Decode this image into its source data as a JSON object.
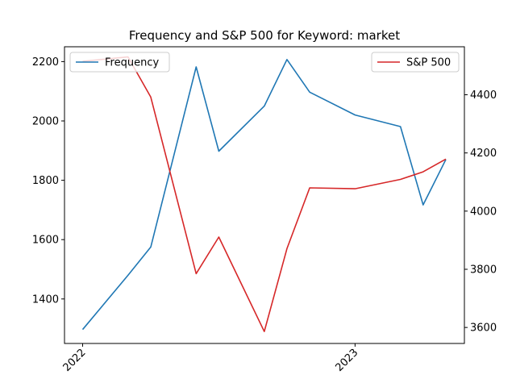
{
  "chart_data": {
    "type": "line",
    "title": "Frequency and S&P 500 for Keyword: market",
    "xlabel": "",
    "ylabel_left": "",
    "ylabel_right": "",
    "x": [
      "2022-01",
      "2022-02",
      "2022-03",
      "2022-04",
      "2022-05",
      "2022-06",
      "2022-07",
      "2022-08",
      "2022-09",
      "2022-10",
      "2022-11",
      "2022-12",
      "2023-01",
      "2023-02",
      "2023-03",
      "2023-04",
      "2023-05",
      "2023-06"
    ],
    "x_ticks": [
      "2022",
      "2023"
    ],
    "series": [
      {
        "name": "Frequency",
        "axis": "left",
        "color": "#1f77b4",
        "x": [
          "2022-01",
          "2022-03",
          "2022-04",
          "2022-06",
          "2022-07",
          "2022-09",
          "2022-10",
          "2022-11",
          "2023-01",
          "2023-03",
          "2023-04",
          "2023-05"
        ],
        "values": [
          1297,
          1480,
          1575,
          2182,
          1898,
          2050,
          2207,
          2097,
          2020,
          1981,
          1717,
          1870
        ]
      },
      {
        "name": "S&P 500",
        "axis": "right",
        "color": "#d62728",
        "x": [
          "2022-01",
          "2022-03",
          "2022-04",
          "2022-06",
          "2022-07",
          "2022-09",
          "2022-10",
          "2022-11",
          "2023-01",
          "2023-03",
          "2023-04",
          "2023-05"
        ],
        "values": [
          4515,
          4530,
          4392,
          3785,
          3911,
          3586,
          3871,
          4080,
          4077,
          4109,
          4135,
          4179
        ]
      }
    ],
    "y_left": {
      "ylim": [
        1250,
        2250
      ],
      "ticks": [
        1400,
        1600,
        1800,
        2000,
        2200
      ]
    },
    "y_right": {
      "ylim": [
        3545,
        4565
      ],
      "ticks": [
        3600,
        3800,
        4000,
        4200,
        4400
      ]
    },
    "grid": false,
    "legend_left": {
      "placement": "top-left",
      "entries": [
        "Frequency"
      ]
    },
    "legend_right": {
      "placement": "top-right",
      "entries": [
        "S&P 500"
      ]
    }
  }
}
